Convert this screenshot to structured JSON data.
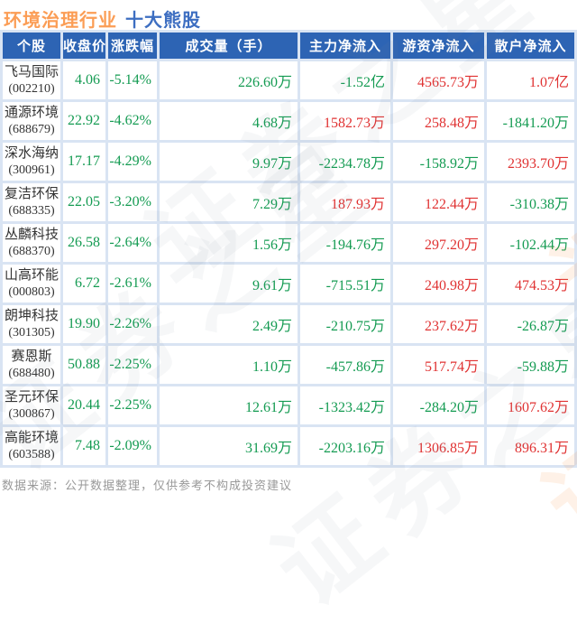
{
  "title": {
    "industry": "环境治理行业",
    "suffix": "十大熊股"
  },
  "watermark": {
    "text": "证券之星"
  },
  "colors": {
    "down_green": "#149B52",
    "up_red": "#E03232",
    "header_bg": "#2D64B4",
    "title_orange": "#FB9D55",
    "title_blue": "#3D6EC1"
  },
  "table": {
    "headers": [
      "个股",
      "收盘价",
      "涨跌幅",
      "成交量（手）",
      "主力净流入",
      "游资净流入",
      "散户净流入"
    ],
    "rows": [
      {
        "name": "飞马国际",
        "code": "(002210)",
        "close": "4.06",
        "change": "-5.14%",
        "volume": "226.60万",
        "main_inflow": "-1.52亿",
        "hot_money_inflow": "4565.73万",
        "retail_inflow": "1.07亿",
        "trend": "down"
      },
      {
        "name": "通源环境",
        "code": "(688679)",
        "close": "22.92",
        "change": "-4.62%",
        "volume": "4.68万",
        "main_inflow": "1582.73万",
        "hot_money_inflow": "258.48万",
        "retail_inflow": "-1841.20万",
        "trend": "down"
      },
      {
        "name": "深水海纳",
        "code": "(300961)",
        "close": "17.17",
        "change": "-4.29%",
        "volume": "9.97万",
        "main_inflow": "-2234.78万",
        "hot_money_inflow": "-158.92万",
        "retail_inflow": "2393.70万",
        "trend": "down"
      },
      {
        "name": "复洁环保",
        "code": "(688335)",
        "close": "22.05",
        "change": "-3.20%",
        "volume": "7.29万",
        "main_inflow": "187.93万",
        "hot_money_inflow": "122.44万",
        "retail_inflow": "-310.38万",
        "trend": "down"
      },
      {
        "name": "丛麟科技",
        "code": "(688370)",
        "close": "26.58",
        "change": "-2.64%",
        "volume": "1.56万",
        "main_inflow": "-194.76万",
        "hot_money_inflow": "297.20万",
        "retail_inflow": "-102.44万",
        "trend": "down"
      },
      {
        "name": "山高环能",
        "code": "(000803)",
        "close": "6.72",
        "change": "-2.61%",
        "volume": "9.61万",
        "main_inflow": "-715.51万",
        "hot_money_inflow": "240.98万",
        "retail_inflow": "474.53万",
        "trend": "down"
      },
      {
        "name": "朗坤科技",
        "code": "(301305)",
        "close": "19.90",
        "change": "-2.26%",
        "volume": "2.49万",
        "main_inflow": "-210.75万",
        "hot_money_inflow": "237.62万",
        "retail_inflow": "-26.87万",
        "trend": "down"
      },
      {
        "name": "赛恩斯",
        "code": "(688480)",
        "close": "50.88",
        "change": "-2.25%",
        "volume": "1.10万",
        "main_inflow": "-457.86万",
        "hot_money_inflow": "517.74万",
        "retail_inflow": "-59.88万",
        "trend": "down"
      },
      {
        "name": "圣元环保",
        "code": "(300867)",
        "close": "20.44",
        "change": "-2.25%",
        "volume": "12.61万",
        "main_inflow": "-1323.42万",
        "hot_money_inflow": "-284.20万",
        "retail_inflow": "1607.62万",
        "trend": "down"
      },
      {
        "name": "高能环境",
        "code": "(603588)",
        "close": "7.48",
        "change": "-2.09%",
        "volume": "31.69万",
        "main_inflow": "-2203.16万",
        "hot_money_inflow": "1306.85万",
        "retail_inflow": "896.31万",
        "trend": "down"
      }
    ]
  },
  "footer": {
    "text": "数据来源：公开数据整理，仅供参考不构成投资建议"
  }
}
